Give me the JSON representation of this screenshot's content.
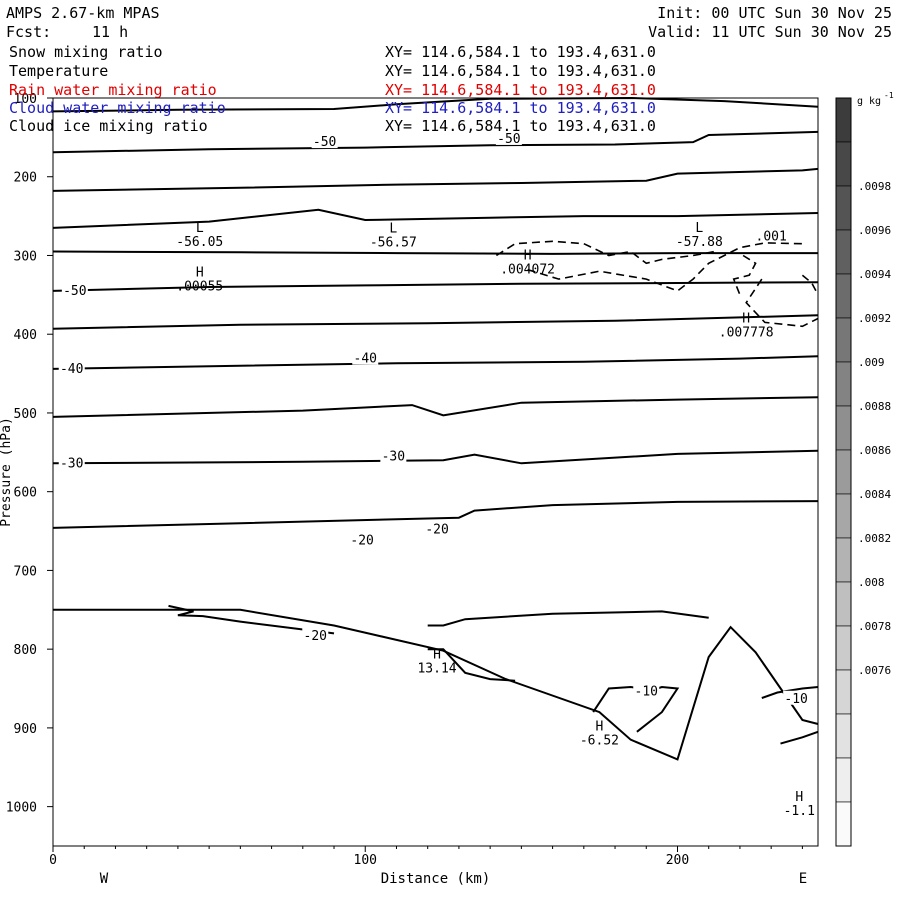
{
  "header": {
    "model": "AMPS 2.67-km MPAS",
    "init": "Init: 00 UTC Sun 30 Nov 25",
    "fcst_label": "Fcst:",
    "fcst_value": "11 h",
    "valid": "Valid: 11 UTC Sun 30 Nov 25"
  },
  "fields": [
    {
      "name": "Snow mixing ratio",
      "xy": "XY= 114.6,584.1 to 193.4,631.0",
      "color": "#000000"
    },
    {
      "name": "Temperature",
      "xy": "XY= 114.6,584.1 to 193.4,631.0",
      "color": "#000000"
    },
    {
      "name": "Rain water mixing ratio",
      "xy": "XY= 114.6,584.1 to 193.4,631.0",
      "color": "#e00000"
    },
    {
      "name": "Cloud water mixing ratio",
      "xy": "XY= 114.6,584.1 to 193.4,631.0",
      "color": "#2020c0"
    },
    {
      "name": "Cloud ice mixing ratio",
      "xy": "XY= 114.6,584.1 to 193.4,631.0",
      "color": "#000000"
    }
  ],
  "chart_data": {
    "type": "contour cross-section",
    "xlabel": "Distance (km)",
    "ylabel": "Pressure (hPa)",
    "xlim": [
      0,
      245
    ],
    "ylim": [
      1050,
      100
    ],
    "x_ticks": [
      0,
      100,
      200
    ],
    "y_ticks": [
      100,
      200,
      300,
      400,
      500,
      600,
      700,
      800,
      900,
      1000
    ],
    "x_end_labels": {
      "left": "W",
      "right": "E"
    },
    "temperature_contours": [
      {
        "points": [
          [
            0,
            117
          ],
          [
            40,
            115
          ],
          [
            90,
            114
          ],
          [
            110,
            108
          ],
          [
            140,
            101
          ],
          [
            185,
            100
          ],
          [
            215,
            104
          ],
          [
            245,
            111
          ]
        ]
      },
      {
        "points": [
          [
            0,
            169
          ],
          [
            50,
            165
          ],
          [
            100,
            163
          ],
          [
            140,
            160
          ],
          [
            180,
            159
          ],
          [
            205,
            156
          ],
          [
            210,
            147
          ],
          [
            245,
            143
          ]
        ],
        "label": "-50",
        "label_at": [
          87,
          156
        ]
      },
      {
        "points": [
          [
            0,
            218
          ],
          [
            60,
            214
          ],
          [
            110,
            210
          ],
          [
            150,
            208
          ],
          [
            190,
            205
          ],
          [
            200,
            196
          ],
          [
            240,
            192
          ],
          [
            245,
            190
          ]
        ]
      },
      {
        "points": [
          [
            0,
            265
          ],
          [
            50,
            257
          ],
          [
            85,
            242
          ],
          [
            100,
            255
          ],
          [
            140,
            252
          ],
          [
            170,
            250
          ],
          [
            200,
            250
          ],
          [
            245,
            246
          ]
        ]
      },
      {
        "points": [
          [
            0,
            295
          ],
          [
            60,
            296
          ],
          [
            110,
            297
          ],
          [
            160,
            298
          ],
          [
            200,
            297
          ],
          [
            245,
            297
          ]
        ]
      },
      {
        "points": [
          [
            0,
            345
          ],
          [
            50,
            340
          ],
          [
            100,
            338
          ],
          [
            150,
            336
          ],
          [
            200,
            335
          ],
          [
            245,
            334
          ]
        ],
        "label": "-50",
        "label_at": [
          7,
          345
        ]
      },
      {
        "points": [
          [
            0,
            393
          ],
          [
            60,
            388
          ],
          [
            120,
            386
          ],
          [
            180,
            383
          ],
          [
            245,
            376
          ]
        ]
      },
      {
        "points": [
          [
            0,
            444
          ],
          [
            60,
            440
          ],
          [
            110,
            437
          ],
          [
            170,
            435
          ],
          [
            220,
            431
          ],
          [
            245,
            428
          ]
        ],
        "label": "-40",
        "label_at": [
          6,
          444
        ]
      },
      {
        "points": [
          [
            0,
            505
          ],
          [
            80,
            497
          ],
          [
            115,
            490
          ],
          [
            125,
            503
          ],
          [
            150,
            487
          ],
          [
            200,
            483
          ],
          [
            245,
            480
          ]
        ]
      },
      {
        "points": [
          [
            0,
            564
          ],
          [
            80,
            562
          ],
          [
            125,
            560
          ],
          [
            135,
            553
          ],
          [
            150,
            564
          ],
          [
            200,
            552
          ],
          [
            245,
            548
          ]
        ],
        "label": "-30",
        "label_at": [
          6,
          564
        ]
      },
      {
        "points": [
          [
            0,
            646
          ],
          [
            60,
            640
          ],
          [
            130,
            633
          ],
          [
            135,
            624
          ],
          [
            160,
            617
          ],
          [
            200,
            613
          ],
          [
            245,
            612
          ]
        ]
      },
      {
        "points": [
          [
            0,
            750
          ],
          [
            60,
            750
          ],
          [
            90,
            770
          ],
          [
            125,
            802
          ],
          [
            145,
            838
          ],
          [
            175,
            880
          ],
          [
            185,
            915
          ],
          [
            200,
            940
          ],
          [
            210,
            810
          ],
          [
            217,
            772
          ],
          [
            225,
            804
          ],
          [
            240,
            890
          ],
          [
            245,
            895
          ]
        ],
        "label": "-20",
        "label_at": [
          84,
          783
        ]
      }
    ],
    "contour_labels": [
      {
        "text": "-50",
        "x": 87,
        "p": 156
      },
      {
        "text": "-50",
        "x": 146,
        "p": 152
      },
      {
        "text": "-50",
        "x": 7,
        "p": 345
      },
      {
        "text": "-40",
        "x": 6,
        "p": 444
      },
      {
        "text": "-40",
        "x": 100,
        "p": 431
      },
      {
        "text": "-30",
        "x": 6,
        "p": 564
      },
      {
        "text": "-30",
        "x": 109,
        "p": 555
      },
      {
        "text": "-20",
        "x": 99,
        "p": 662
      },
      {
        "text": "-20",
        "x": 123,
        "p": 648
      },
      {
        "text": "-20",
        "x": 84,
        "p": 783
      },
      {
        "text": "-10",
        "x": 190,
        "p": 854
      },
      {
        "text": "-10",
        "x": 238,
        "p": 863
      }
    ],
    "extrema": [
      {
        "kind": "L",
        "value": "-56.05",
        "x": 47,
        "p": 270
      },
      {
        "kind": "L",
        "value": "-56.57",
        "x": 109,
        "p": 271
      },
      {
        "kind": "L",
        "value": "-57.88",
        "x": 207,
        "p": 270
      },
      {
        "kind": "H",
        "value": ".00055",
        "x": 47,
        "p": 327
      },
      {
        "kind": "H",
        "value": ".004072",
        "x": 152,
        "p": 305
      },
      {
        "kind": "H",
        "value": ".007778",
        "x": 222,
        "p": 385
      },
      {
        "kind": "H",
        "value": "13.14",
        "x": 123,
        "p": 812
      },
      {
        "kind": "H",
        "value": "-6.52",
        "x": 175,
        "p": 903
      },
      {
        "kind": "H",
        "value": "-1.1",
        "x": 239,
        "p": 993
      }
    ],
    "snow_contour_label": ".001",
    "colorbar": {
      "units": "g kg-1",
      "ticks": [
        ".0098",
        ".0096",
        ".0094",
        ".0092",
        ".009",
        ".0088",
        ".0086",
        ".0084",
        ".0082",
        ".008",
        ".0078",
        ".0076"
      ],
      "levels": 17,
      "color_top": "#3c3c3c",
      "color_bottom": "#fafafa"
    },
    "grid": false
  }
}
